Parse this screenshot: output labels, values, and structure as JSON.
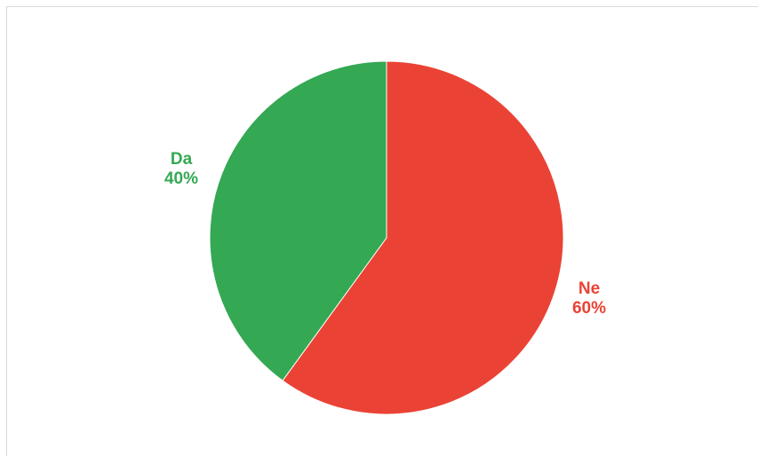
{
  "chart_data": {
    "type": "pie",
    "categories": [
      "Ne",
      "Da"
    ],
    "values": [
      60,
      40
    ],
    "labels": [
      "60%",
      "40%"
    ],
    "colors": [
      "#ea4335",
      "#34a853"
    ],
    "start_angle_deg": 0,
    "direction": "clockwise",
    "title": "",
    "legend": "none"
  }
}
